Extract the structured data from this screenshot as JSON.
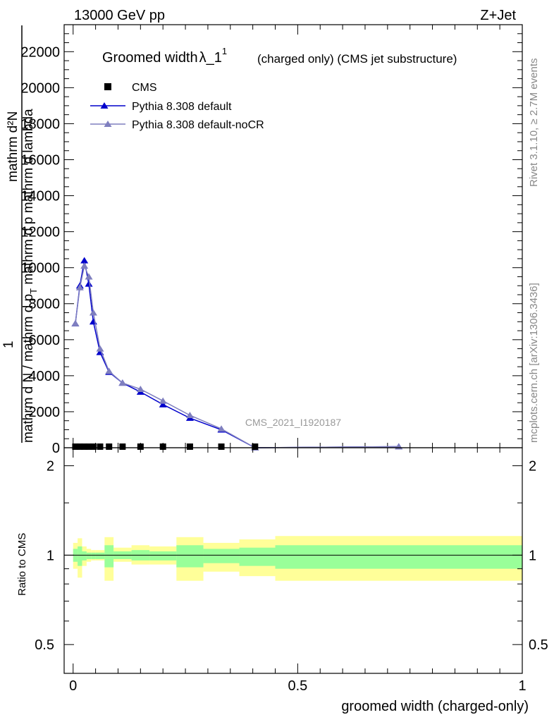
{
  "header": {
    "left": "13000 GeV pp",
    "right": "Z+Jet"
  },
  "side_labels": {
    "rivet": "Rivet 3.1.10, ≥ 2.7M events",
    "mcplots": "mcplots.cern.ch [arXiv:1306.3436]"
  },
  "main_plot": {
    "title_main": "Groomed width",
    "title_lambda": "λ_1",
    "title_sup": "1",
    "title_suffix": "(charged only) (CMS jet substructure)",
    "ylabel_numerator": "mathrm d²N",
    "ylabel_one": "1",
    "ylabel_prefix": "mathrm d N / mathrm d p",
    "ylabel_sub": "T",
    "ylabel_suffix": " mathrm d p mathrm d lambda",
    "watermark": "CMS_2021_I1920187"
  },
  "ratio_plot": {
    "ylabel": "Ratio to CMS",
    "xlabel": "groomed width (charged-only)"
  },
  "colors": {
    "cms": "#000000",
    "pythia_default": "#0000cc",
    "pythia_nocr": "#7f7fbf",
    "band_outer": "#ffff99",
    "band_inner": "#99ff99"
  },
  "chart_data": [
    {
      "type": "line",
      "title": "Groomed width λ_1^1 (charged only) (CMS jet substructure)",
      "xlim": [
        -0.02,
        1.0
      ],
      "ylim": [
        0,
        23500
      ],
      "x_ticks": [
        0,
        0.5,
        1
      ],
      "y_ticks": [
        0,
        2000,
        4000,
        6000,
        8000,
        10000,
        12000,
        14000,
        16000,
        18000,
        20000,
        22000
      ],
      "y_tick_labels": [
        "0",
        "2000",
        "4000",
        "6000",
        "8000",
        "10000",
        "12000",
        "14000",
        "16000",
        "18000",
        "20000",
        "22000"
      ],
      "legend_position": "top-left",
      "series": [
        {
          "name": "CMS",
          "marker": "square",
          "x": [
            0.005,
            0.015,
            0.025,
            0.035,
            0.045,
            0.06,
            0.08,
            0.11,
            0.15,
            0.2,
            0.26,
            0.33,
            0.405
          ],
          "y": [
            60,
            60,
            60,
            60,
            60,
            60,
            60,
            60,
            60,
            60,
            60,
            60,
            60
          ]
        },
        {
          "name": "Pythia 8.308 default",
          "marker": "triangle",
          "x": [
            0.005,
            0.015,
            0.025,
            0.035,
            0.045,
            0.06,
            0.08,
            0.11,
            0.15,
            0.2,
            0.26,
            0.33,
            0.405,
            0.725
          ],
          "y": [
            6900,
            9000,
            10400,
            9100,
            7000,
            5300,
            4200,
            3600,
            3100,
            2400,
            1650,
            1000,
            0,
            60
          ]
        },
        {
          "name": "Pythia 8.308 default-noCR",
          "marker": "triangle",
          "x": [
            0.005,
            0.015,
            0.025,
            0.035,
            0.045,
            0.06,
            0.08,
            0.11,
            0.15,
            0.2,
            0.26,
            0.33,
            0.405,
            0.725
          ],
          "y": [
            6900,
            8900,
            10100,
            9500,
            7500,
            5500,
            4250,
            3600,
            3250,
            2600,
            1800,
            1050,
            0,
            60
          ]
        }
      ]
    },
    {
      "type": "area",
      "ylabel": "Ratio to CMS",
      "xlabel": "groomed width (charged-only)",
      "xlim": [
        -0.02,
        1.0
      ],
      "ylim": [
        0.4,
        2.3
      ],
      "y_scale": "log",
      "x_ticks": [
        0,
        0.5,
        1
      ],
      "x_tick_labels": [
        "0",
        "0.5",
        "1"
      ],
      "y_ticks": [
        0.5,
        1,
        2
      ],
      "y_tick_labels": [
        "0.5",
        "1",
        "2"
      ],
      "bin_edges": [
        0.0,
        0.01,
        0.02,
        0.03,
        0.04,
        0.05,
        0.07,
        0.09,
        0.13,
        0.17,
        0.23,
        0.29,
        0.37,
        0.45,
        1.0
      ],
      "outer_band": {
        "low": [
          0.9,
          0.84,
          0.92,
          0.95,
          0.96,
          0.96,
          0.82,
          0.95,
          0.93,
          0.93,
          0.82,
          0.88,
          0.85,
          0.82
        ],
        "high": [
          1.1,
          1.14,
          1.07,
          1.05,
          1.04,
          1.04,
          1.15,
          1.06,
          1.08,
          1.07,
          1.15,
          1.1,
          1.13,
          1.16
        ]
      },
      "inner_band": {
        "low": [
          0.95,
          0.92,
          0.96,
          0.97,
          0.97,
          0.97,
          0.91,
          0.97,
          0.96,
          0.96,
          0.91,
          0.94,
          0.92,
          0.9
        ],
        "high": [
          1.05,
          1.07,
          1.03,
          1.02,
          1.02,
          1.02,
          1.08,
          1.03,
          1.04,
          1.03,
          1.08,
          1.05,
          1.06,
          1.08
        ]
      },
      "reference": 1
    }
  ]
}
